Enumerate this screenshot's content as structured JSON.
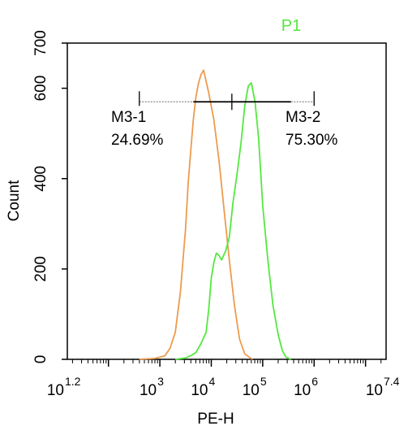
{
  "chart_data": {
    "type": "line",
    "title": "",
    "gate_label": "P1",
    "xlabel": "PE-H",
    "ylabel": "Count",
    "x_scale": "log",
    "xlim": [
      1.2,
      7.4
    ],
    "ylim": [
      0,
      700
    ],
    "x_ticks": [
      {
        "exp": 1.2,
        "base": "10",
        "sup": "1.2"
      },
      {
        "exp": 3,
        "base": "10",
        "sup": "3"
      },
      {
        "exp": 4,
        "base": "10",
        "sup": "4"
      },
      {
        "exp": 5,
        "base": "10",
        "sup": "5"
      },
      {
        "exp": 6,
        "base": "10",
        "sup": "6"
      },
      {
        "exp": 7.4,
        "base": "10",
        "sup": "7.4"
      }
    ],
    "y_ticks": [
      0,
      200,
      400,
      600,
      700
    ],
    "y_tick_labels": [
      "0",
      "200",
      "400",
      "600",
      "700"
    ],
    "series": [
      {
        "color": "#ed9b4e",
        "points": [
          [
            2.6,
            0
          ],
          [
            2.9,
            2
          ],
          [
            3.1,
            8
          ],
          [
            3.2,
            25
          ],
          [
            3.3,
            60
          ],
          [
            3.4,
            150
          ],
          [
            3.5,
            290
          ],
          [
            3.55,
            390
          ],
          [
            3.6,
            460
          ],
          [
            3.65,
            530
          ],
          [
            3.7,
            580
          ],
          [
            3.75,
            610
          ],
          [
            3.8,
            630
          ],
          [
            3.85,
            640
          ],
          [
            3.88,
            625
          ],
          [
            3.95,
            590
          ],
          [
            4.05,
            530
          ],
          [
            4.15,
            440
          ],
          [
            4.25,
            330
          ],
          [
            4.35,
            220
          ],
          [
            4.45,
            120
          ],
          [
            4.55,
            45
          ],
          [
            4.65,
            12
          ],
          [
            4.8,
            0
          ]
        ]
      },
      {
        "color": "#54e83f",
        "points": [
          [
            3.3,
            0
          ],
          [
            3.5,
            3
          ],
          [
            3.6,
            8
          ],
          [
            3.7,
            15
          ],
          [
            3.8,
            35
          ],
          [
            3.9,
            60
          ],
          [
            3.95,
            110
          ],
          [
            4.0,
            180
          ],
          [
            4.05,
            215
          ],
          [
            4.1,
            235
          ],
          [
            4.15,
            230
          ],
          [
            4.2,
            220
          ],
          [
            4.28,
            240
          ],
          [
            4.35,
            270
          ],
          [
            4.42,
            345
          ],
          [
            4.5,
            410
          ],
          [
            4.58,
            480
          ],
          [
            4.65,
            560
          ],
          [
            4.72,
            605
          ],
          [
            4.78,
            612
          ],
          [
            4.85,
            570
          ],
          [
            4.92,
            490
          ],
          [
            5.0,
            340
          ],
          [
            5.1,
            220
          ],
          [
            5.2,
            120
          ],
          [
            5.3,
            55
          ],
          [
            5.38,
            20
          ],
          [
            5.45,
            5
          ],
          [
            5.55,
            0
          ]
        ]
      }
    ],
    "markers": [
      {
        "name": "M3-1",
        "percent": "24.69%",
        "x_range": [
          2.6,
          4.4
        ],
        "y": 570
      },
      {
        "name": "M3-2",
        "percent": "75.30%",
        "x_range": [
          4.4,
          6.0
        ],
        "y": 570
      }
    ],
    "grid": false
  }
}
